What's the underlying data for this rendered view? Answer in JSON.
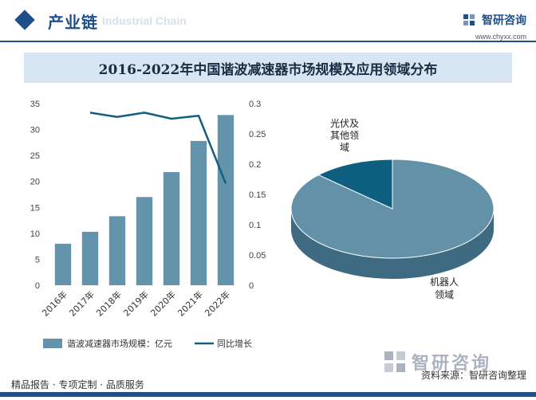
{
  "header": {
    "section_title": "产业链",
    "ghost_text": "Industrial Chain",
    "brand_name": "智研咨询",
    "brand_url": "www.chyxx.com"
  },
  "chart_title": "2016-2022年中国谐波减速器市场规模及应用领域分布",
  "footer": {
    "services": "精品报告 · 专项定制 · 品质服务",
    "source": "资料来源：智研咨询整理"
  },
  "watermark": {
    "text": "智研咨询"
  },
  "colors": {
    "bar": "#6494ab",
    "line": "#145f7f",
    "pie_main": "#6391a8",
    "pie_side": "#3e6b81",
    "pie_small": "#0e5f80",
    "brand": "#1f4f8a"
  },
  "chart_data": [
    {
      "type": "bar",
      "categories": [
        "2016年",
        "2017年",
        "2018年",
        "2019年",
        "2020年",
        "2021年",
        "2022年"
      ],
      "series": [
        {
          "name": "谐波减速器市场规模：亿元",
          "type": "bar",
          "axis": "left",
          "values": [
            8.0,
            10.3,
            13.3,
            17.0,
            21.8,
            27.8,
            32.8
          ]
        },
        {
          "name": "同比增长",
          "type": "line",
          "axis": "right",
          "values": [
            null,
            0.285,
            0.278,
            0.285,
            0.275,
            0.28,
            0.168
          ]
        }
      ],
      "y_left": {
        "ylim": [
          0,
          35
        ],
        "ticks": [
          "0",
          "5",
          "10",
          "15",
          "20",
          "25",
          "30",
          "35"
        ]
      },
      "y_right": {
        "ylim": [
          0,
          0.3
        ],
        "ticks": [
          "0",
          "0.05",
          "0.1",
          "0.15",
          "0.2",
          "0.25",
          "0.3"
        ]
      },
      "legend": "bottom"
    },
    {
      "type": "pie",
      "labels": [
        "机器人领域",
        "光伏及其他领域"
      ],
      "label_lines": [
        [
          "机器人",
          "领域"
        ],
        [
          "光伏及",
          "其他领",
          "域"
        ]
      ],
      "values": [
        87,
        13
      ]
    }
  ]
}
